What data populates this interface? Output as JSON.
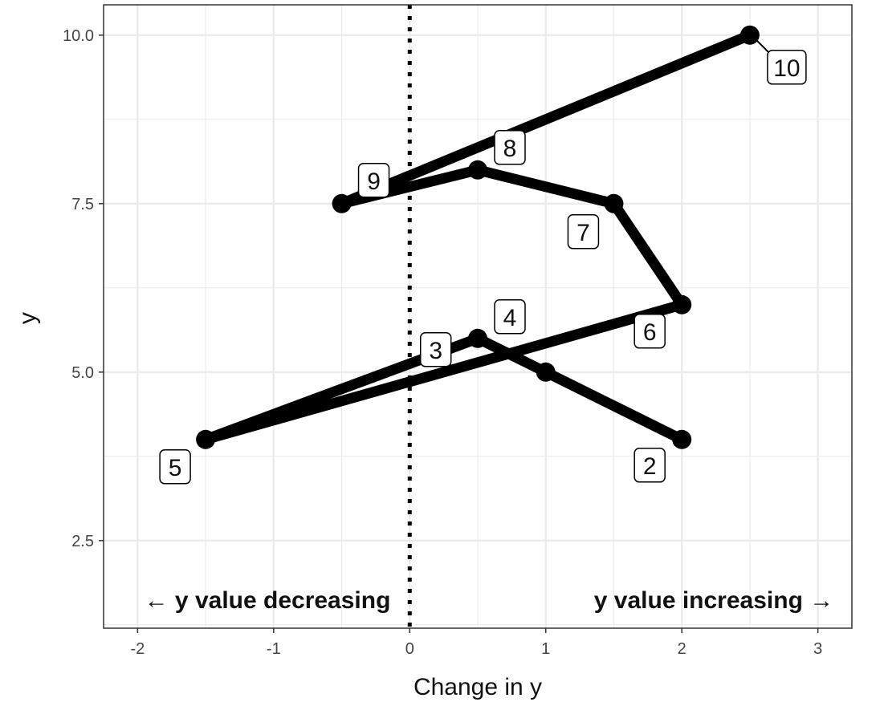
{
  "chart_data": {
    "type": "line",
    "title": "",
    "xlabel": "Change in y",
    "ylabel": "y",
    "xlim": [
      -2.25,
      3.25
    ],
    "ylim": [
      1.2,
      10.45
    ],
    "x_ticks": [
      -2,
      -1,
      0,
      1,
      2,
      3
    ],
    "x_tick_labels": [
      "-2",
      "-1",
      "0",
      "1",
      "2",
      "3"
    ],
    "y_ticks": [
      2.5,
      5.0,
      7.5,
      10.0
    ],
    "y_tick_labels": [
      "2.5",
      "5.0",
      "7.5",
      "10.0"
    ],
    "grid": true,
    "reference_line": {
      "x": 0,
      "style": "dotted"
    },
    "points": [
      {
        "label": "2",
        "x": 2.0,
        "y": 4.0
      },
      {
        "label": "3",
        "x": 1.0,
        "y": 5.0
      },
      {
        "label": "4",
        "x": 0.5,
        "y": 5.5
      },
      {
        "label": "5",
        "x": -1.5,
        "y": 4.0
      },
      {
        "label": "6",
        "x": 2.0,
        "y": 6.0
      },
      {
        "label": "7",
        "x": 1.5,
        "y": 7.5
      },
      {
        "label": "8",
        "x": 0.5,
        "y": 8.0
      },
      {
        "label": "9",
        "x": -0.5,
        "y": 7.5
      },
      {
        "label": "10",
        "x": 2.5,
        "y": 10.0
      }
    ],
    "annotations": {
      "left": "← y value decreasing",
      "right": "y value increasing →"
    },
    "colors": {
      "line": "#000000",
      "grid": "#ebebeb",
      "panel_border": "#333333"
    }
  }
}
